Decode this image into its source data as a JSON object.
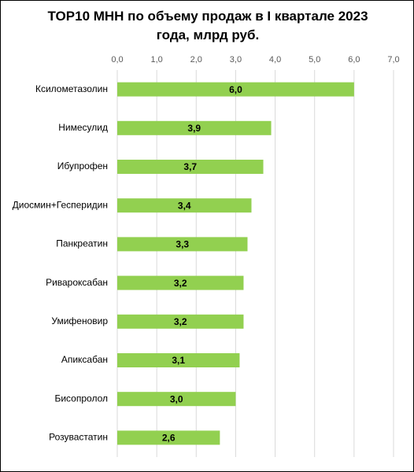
{
  "chart_data": {
    "type": "bar",
    "orientation": "horizontal",
    "title": "TOP10 МНН по объему продаж в I квартале 2023 года, млрд руб.",
    "categories": [
      "Ксилометазолин",
      "Нимесулид",
      "Ибупрофен",
      "Диосмин+Гесперидин",
      "Панкреатин",
      "Ривароксабан",
      "Умифеновир",
      "Апиксабан",
      "Бисопролол",
      "Розувастатин"
    ],
    "values": [
      6.0,
      3.9,
      3.7,
      3.4,
      3.3,
      3.2,
      3.2,
      3.1,
      3.0,
      2.6
    ],
    "value_labels": [
      "6,0",
      "3,9",
      "3,7",
      "3,4",
      "3,3",
      "3,2",
      "3,2",
      "3,1",
      "3,0",
      "2,6"
    ],
    "color": "#92d050",
    "xlim": [
      0,
      7
    ],
    "xticks": [
      {
        "value": 0,
        "label": "0,0"
      },
      {
        "value": 1,
        "label": "1,0"
      },
      {
        "value": 2,
        "label": "2,0"
      },
      {
        "value": 3,
        "label": "3,0"
      },
      {
        "value": 4,
        "label": "4,0"
      },
      {
        "value": 5,
        "label": "5,0"
      },
      {
        "value": 6,
        "label": "6,0"
      },
      {
        "value": 7,
        "label": "7,0"
      }
    ],
    "grid": true
  }
}
